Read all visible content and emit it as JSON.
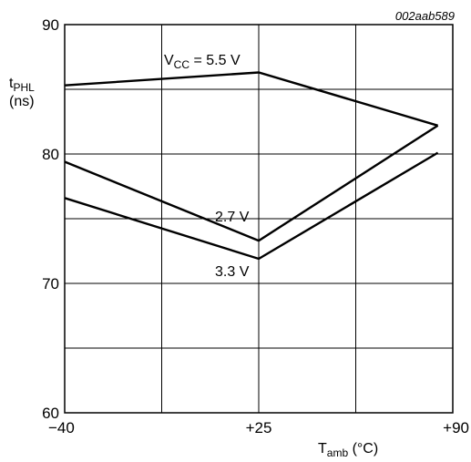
{
  "figure_code": "002aab589",
  "chart_data": {
    "type": "line",
    "xlabel": {
      "main": "T",
      "sub": "amb",
      "unit": "(°C)"
    },
    "ylabel": {
      "main": "t",
      "sub": "PHL",
      "unit": "(ns)"
    },
    "xlim": [
      -40,
      90
    ],
    "ylim": [
      60,
      90
    ],
    "x_ticks": [
      {
        "value": -40,
        "label": "−40"
      },
      {
        "value": 25,
        "label": "+25"
      },
      {
        "value": 90,
        "label": "+90"
      }
    ],
    "y_ticks": [
      {
        "value": 60,
        "label": "60"
      },
      {
        "value": 70,
        "label": "70"
      },
      {
        "value": 80,
        "label": "80"
      },
      {
        "value": 90,
        "label": "90"
      }
    ],
    "x_grid": [
      -40,
      -7.5,
      25,
      57.5,
      90
    ],
    "y_grid": [
      60,
      65,
      70,
      75,
      80,
      85,
      90
    ],
    "grid": true,
    "series": [
      {
        "name_main": "V",
        "name_sub": "CC",
        "name_rest": " = 5.5 V",
        "x": [
          -40,
          25,
          85
        ],
        "y": [
          85.3,
          86.3,
          82.2
        ]
      },
      {
        "name": "2.7 V",
        "x": [
          -40,
          25,
          85
        ],
        "y": [
          79.4,
          73.3,
          82.2
        ]
      },
      {
        "name": "3.3 V",
        "x": [
          -40,
          25,
          85
        ],
        "y": [
          76.6,
          71.9,
          80.1
        ]
      }
    ]
  }
}
